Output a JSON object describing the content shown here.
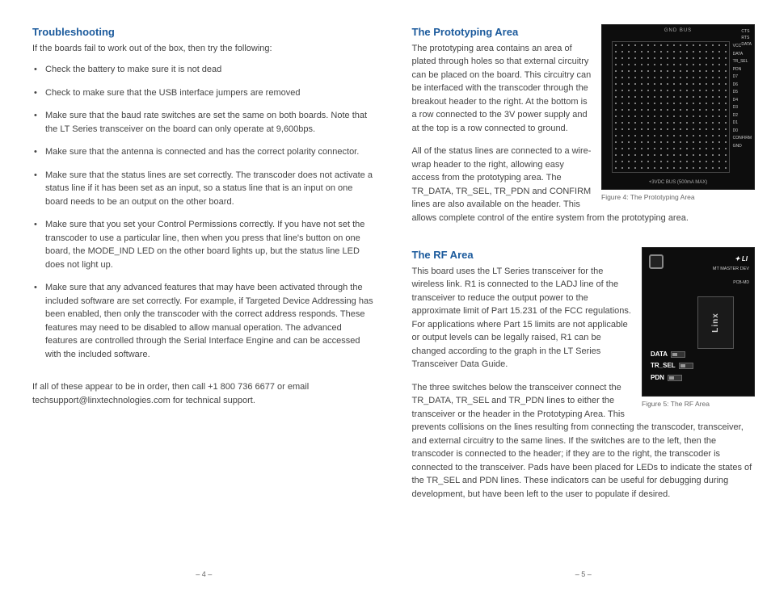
{
  "left": {
    "heading": "Troubleshooting",
    "intro": "If the boards fail to work out of the box, then try the following:",
    "bullets": [
      "Check the battery to make sure it is not dead",
      "Check to make sure that the USB interface jumpers are removed",
      "Make sure that the baud rate switches are set the same on both boards. Note that the LT Series transceiver on the board can only operate at 9,600bps.",
      "Make sure that the antenna is connected and has the correct polarity connector.",
      "Make sure that the status lines are set correctly. The transcoder does not activate a status line if it has been set as an input, so a status line that is an input on one board needs to be an output on the other board.",
      "Make sure that you set your Control Permissions correctly. If you have not set the transcoder to use a particular line, then when you press that line's button on one board, the MODE_IND LED on the other board lights up, but the status line LED does not light up.",
      "Make sure that any advanced features that may have been activated through the included software are set correctly. For example, if Targeted Device Addressing has been enabled, then only the transcoder with the correct address responds. These features may need to be disabled to allow manual operation. The advanced features are controlled through the Serial Interface Engine and can be accessed with the included software."
    ],
    "closing": "If all of these appear to be in order, then call +1 800 736 6677 or email techsupport@linxtechnologies.com for technical support.",
    "pageNum": "– 4 –"
  },
  "right": {
    "proto": {
      "heading": "The Prototyping Area",
      "p1": "The prototyping area contains an area of plated through holes so that external circuitry can be placed on the board. This circuitry can be interfaced with the transcoder through the breakout header to the right. At the bottom is a row connected to the 3V power supply and at the top is a row connected to ground.",
      "p2": "All of the status lines are connected to a wire-wrap header to the right, allowing easy access from the prototyping area. The TR_DATA, TR_SEL, TR_PDN and CONFIRM lines are also available on the header. This allows complete control of the entire system from the prototyping area.",
      "figCaption": "Figure 4: The Prototyping Area",
      "labels": {
        "top": "GND BUS",
        "bottom": "+3VDC BUS (500mA MAX)",
        "sideTop": "CTS\nRTS\nDATA",
        "side": "VCC\nDATA\nTR_SEL\nPDN\nD7\nD6\nD5\nD4\nD3\nD2\nD1\nD0\nCONFIRM\nGND"
      }
    },
    "rf": {
      "heading": "The RF Area",
      "p1": "This board uses the LT Series transceiver for the wireless link. R1 is connected to the LADJ line of the transceiver to reduce the output power to the approximate limit of Part 15.231 of the FCC regulations. For applications where Part 15 limits are not applicable or output levels can be legally raised, R1 can be changed according to the graph in the LT Series Transceiver Data Guide.",
      "p2": "The three switches below the transceiver connect the TR_DATA, TR_SEL and TR_PDN lines to either the transceiver or the header in the Prototyping Area. This prevents collisions on the lines resulting from connecting the transcoder, transceiver, and external circuitry to the same lines. If the switches are to the left, then the transcoder is connected to the header; if they are to the right, the transcoder is connected to the transceiver. Pads have been placed for LEDs to indicate the states of the TR_SEL and PDN lines. These indicators can be useful for debugging during development, but have been left to the user to populate if desired.",
      "figCaption": "Figure 5: The RF Area",
      "labels": {
        "logo": "✦ LI",
        "title": "MT MASTER DEV",
        "sub": "PCB-MD",
        "module": "Linx",
        "data": "DATA",
        "trsel": "TR_SEL",
        "pdn": "PDN"
      }
    },
    "pageNum": "– 5 –"
  }
}
